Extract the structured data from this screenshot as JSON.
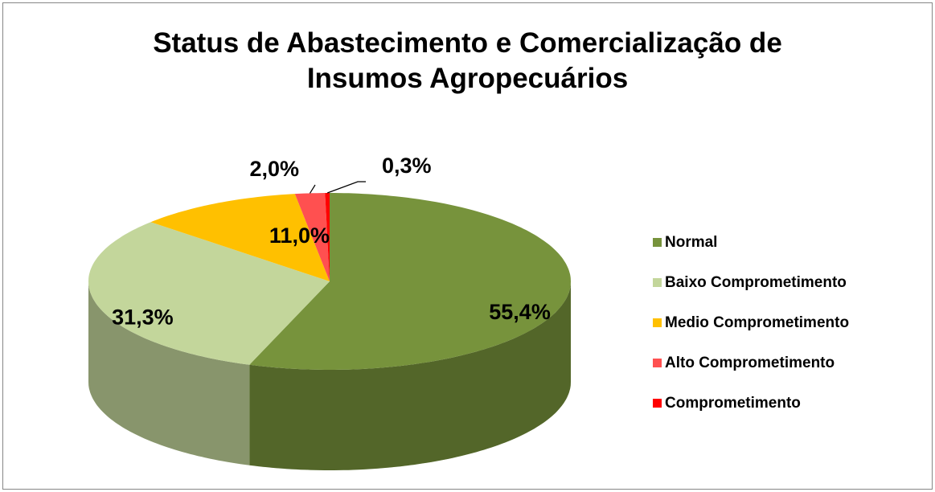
{
  "chart_data": {
    "type": "pie3d",
    "title": "Status de Abastecimento e Comercialização de Insumos Agropecuários",
    "categories": [
      "Normal",
      "Baixo Comprometimento",
      "Medio Comprometimento",
      "Alto Comprometimento",
      "Comprometimento"
    ],
    "values": [
      55.4,
      31.3,
      11.0,
      2.0,
      0.3
    ],
    "value_labels": [
      "55,4%",
      "31,3%",
      "11,0%",
      "2,0%",
      "0,3%"
    ],
    "colors": [
      "#77933c",
      "#c3d69b",
      "#ffc000",
      "#ff5050",
      "#ff0000"
    ],
    "legend": "right"
  }
}
